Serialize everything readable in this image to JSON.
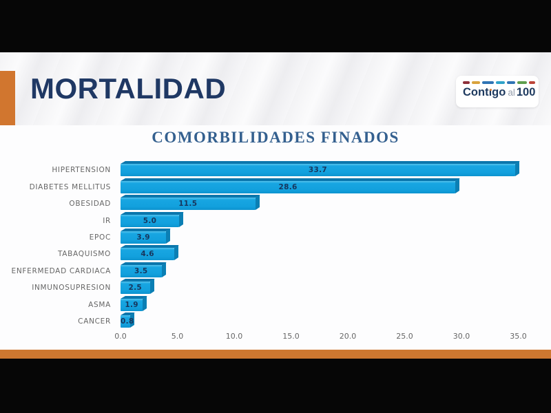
{
  "slide": {
    "header": {
      "title": "MORTALIDAD"
    },
    "logo": {
      "full_text": "Contigo al 100",
      "contigo_pre": "Cont",
      "contigo_i": "ı",
      "contigo_post": "go",
      "mid": "al",
      "number": "100",
      "dash_colors": [
        "#8e2f3a",
        "#d9a33c",
        "#2f74b5",
        "#2fa3c9",
        "#2f74b5",
        "#5f9e4d",
        "#bc4438"
      ]
    },
    "colors": {
      "accent_orange": "#d1762f",
      "bottom_orange": "#ce7730",
      "frame_black": "#060606",
      "header_navy": "#1f3864",
      "title_blue": "#34608f"
    }
  },
  "chart_data": {
    "type": "bar",
    "orientation": "horizontal",
    "title": "COMORBILIDADES FINADOS",
    "categories": [
      "HIPERTENSION",
      "DIABETES MELLITUS",
      "OBESIDAD",
      "IR",
      "EPOC",
      "TABAQUISMO",
      "ENFERMEDAD CARDIACA",
      "INMUNOSUPRESION",
      "ASMA",
      "CANCER"
    ],
    "values": [
      33.7,
      28.6,
      11.5,
      5.0,
      3.9,
      4.6,
      3.5,
      2.5,
      1.9,
      0.8
    ],
    "value_labels": [
      "33.7",
      "28.6",
      "11.5",
      "5.0",
      "3.9",
      "4.6",
      "3.5",
      "2.5",
      "1.9",
      "0.8"
    ],
    "x_ticks": [
      "0.0",
      "5.0",
      "10.0",
      "15.0",
      "20.0",
      "25.0",
      "30.0",
      "35.0"
    ],
    "xlim": [
      0,
      35
    ],
    "grid": false,
    "legend": false,
    "bar_color": "#12a0dd",
    "bar_top_color": "#0a76ac",
    "bar_side_color": "#0b7fb4",
    "value_label_color": "#17365d",
    "category_label_color": "#666666",
    "xlabel": "",
    "ylabel": ""
  }
}
